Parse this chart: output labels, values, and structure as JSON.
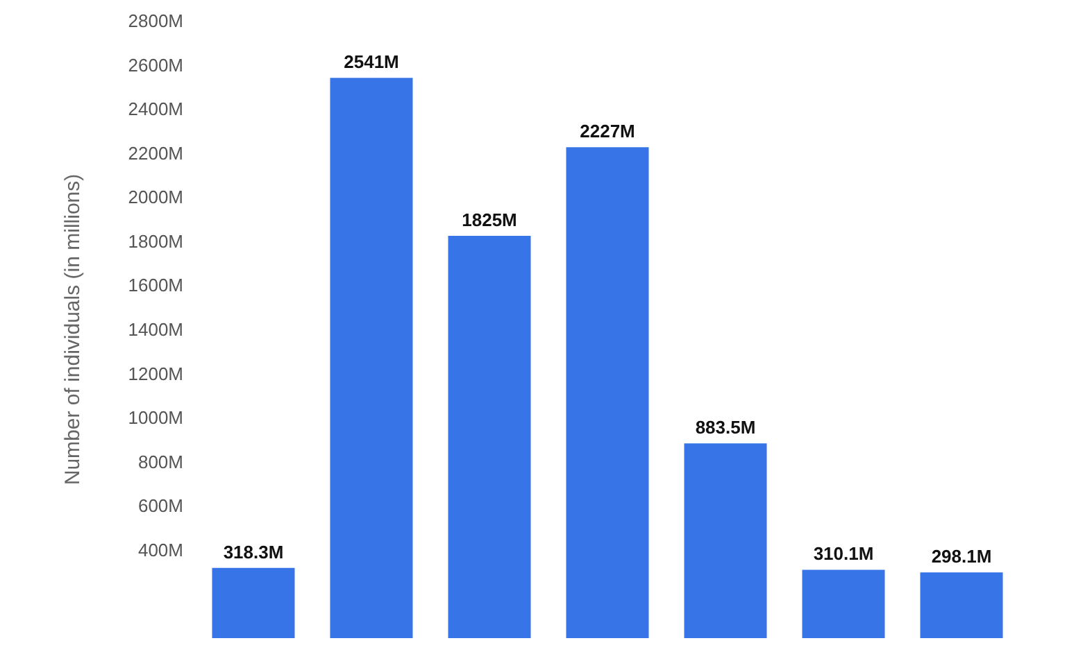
{
  "chart_data": {
    "type": "bar",
    "ylabel": "Number of individuals (in millions)",
    "categories": [
      null,
      null,
      null,
      null,
      null,
      null,
      null
    ],
    "values": [
      318.3,
      2541,
      1825,
      2227,
      883.5,
      310.1,
      298.1
    ],
    "value_labels": [
      "318.3M",
      "2541M",
      "1825M",
      "2227M",
      "883.5M",
      "310.1M",
      "298.1M"
    ],
    "color": "#3674e8",
    "ylim": [
      0,
      2800
    ],
    "yticks": [
      {
        "value": 400,
        "label": "400M"
      },
      {
        "value": 600,
        "label": "600M"
      },
      {
        "value": 800,
        "label": "800M"
      },
      {
        "value": 1000,
        "label": "1000M"
      },
      {
        "value": 1200,
        "label": "1200M"
      },
      {
        "value": 1400,
        "label": "1400M"
      },
      {
        "value": 1600,
        "label": "1600M"
      },
      {
        "value": 1800,
        "label": "1800M"
      },
      {
        "value": 2000,
        "label": "2000M"
      },
      {
        "value": 2200,
        "label": "2200M"
      },
      {
        "value": 2400,
        "label": "2400M"
      },
      {
        "value": 2600,
        "label": "2600M"
      },
      {
        "value": 2800,
        "label": "2800M"
      }
    ],
    "grid": false
  }
}
